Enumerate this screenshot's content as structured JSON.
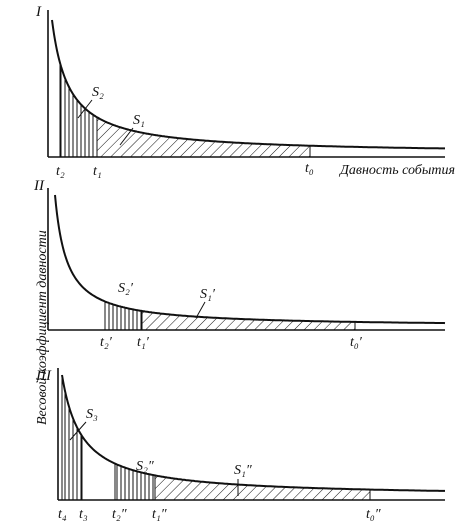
{
  "x_axis_label": "Давность события",
  "y_axis_label": "Весовой коэффициент давности",
  "panels": [
    {
      "numeral": "I",
      "areas": [
        "S₂",
        "S₁"
      ],
      "ticks": [
        "t₂",
        "t₁",
        "t₀"
      ]
    },
    {
      "numeral": "II",
      "areas": [
        "S₂′",
        "S₁′"
      ],
      "ticks": [
        "t₂′",
        "t₁′",
        "t₀′"
      ]
    },
    {
      "numeral": "III",
      "areas": [
        "S₃",
        "S₂″",
        "S₁″"
      ],
      "ticks": [
        "t₄",
        "t₃",
        "t₂″",
        "t₁″",
        "t₀″"
      ]
    }
  ]
}
